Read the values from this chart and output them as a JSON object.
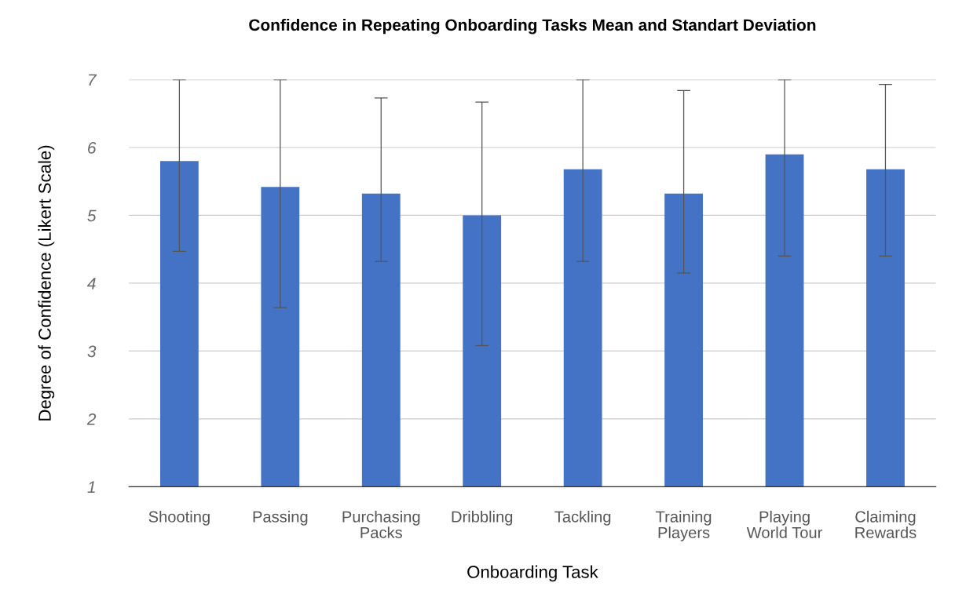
{
  "chart_data": {
    "type": "bar",
    "title": "Confidence in Repeating Onboarding Tasks Mean and Standart Deviation",
    "xlabel": "Onboarding Task",
    "ylabel": "Degree of Confidence (Likert Scale)",
    "categories": [
      "Shooting",
      "Passing",
      "Purchasing\nPacks",
      "Dribbling",
      "Tackling",
      "Training\nPlayers",
      "Playing\nWorld Tour",
      "Claiming\nRewards"
    ],
    "values": [
      5.8,
      5.42,
      5.32,
      5.0,
      5.68,
      5.32,
      5.9,
      5.68
    ],
    "errors": [
      [
        4.47,
        7
      ],
      [
        3.64,
        7
      ],
      [
        4.32,
        6.73
      ],
      [
        3.08,
        6.67
      ],
      [
        4.32,
        7
      ],
      [
        4.15,
        6.84
      ],
      [
        4.4,
        7
      ],
      [
        4.4,
        6.93
      ]
    ],
    "color": "#4472c4",
    "ylim": [
      1,
      7
    ],
    "yticks": [
      1,
      2,
      3,
      4,
      5,
      6,
      7
    ],
    "grid": "y"
  }
}
